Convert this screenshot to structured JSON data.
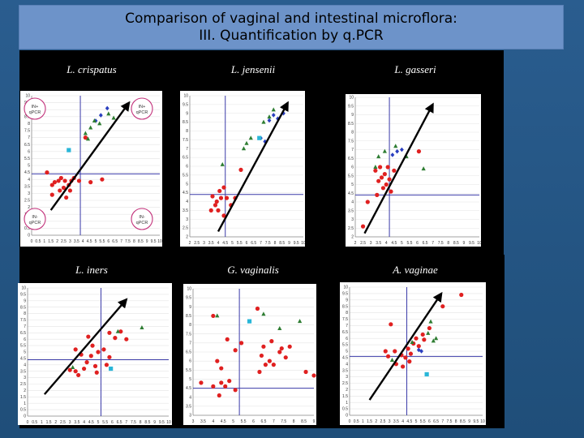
{
  "slide": {
    "title_line1": "Comparison of vaginal and intestinal microflora:",
    "title_line2": "III. Quantification by q.PCR"
  },
  "panels": [
    {
      "label": "L. crispatus",
      "quadrants": [
        {
          "pos": "tl",
          "l1": "IN+",
          "l2": "qPCR"
        },
        {
          "pos": "tr",
          "l1": "IN+",
          "l2": "qPCR"
        },
        {
          "pos": "bl",
          "l1": "IN-",
          "l2": "qPCR"
        },
        {
          "pos": "br",
          "l1": "IN-",
          "l2": "qPCR"
        }
      ]
    },
    {
      "label": "L. jensenii",
      "quadrants": []
    },
    {
      "label": "L. gasseri",
      "quadrants": []
    },
    {
      "label": "L. iners",
      "quadrants": []
    },
    {
      "label": "G. vaginalis",
      "quadrants": []
    },
    {
      "label": "A. vaginae",
      "quadrants": []
    }
  ],
  "chart_data": [
    {
      "type": "scatter",
      "title": "L. crispatus",
      "series": [
        {
          "marker": "circle",
          "color": "#e02020",
          "points": [
            [
              1.2,
              4.5
            ],
            [
              1.6,
              3.6
            ],
            [
              1.8,
              3.8
            ],
            [
              2.1,
              3.9
            ],
            [
              2.3,
              4.1
            ],
            [
              2.6,
              3.9
            ],
            [
              2.5,
              3.4
            ],
            [
              2.9,
              3.6
            ],
            [
              3.1,
              3.9
            ],
            [
              3.3,
              4.1
            ],
            [
              2.2,
              3.2
            ],
            [
              3.7,
              3.9
            ],
            [
              4.6,
              3.8
            ],
            [
              1.6,
              2.9
            ],
            [
              2.7,
              2.7
            ],
            [
              3.0,
              3.2
            ],
            [
              5.5,
              4.0
            ],
            [
              4.2,
              7.0
            ]
          ]
        },
        {
          "marker": "diamond",
          "color": "#2a3fbf",
          "points": [
            [
              5.0,
              8.2
            ],
            [
              5.4,
              8.6
            ],
            [
              5.9,
              9.1
            ]
          ]
        },
        {
          "marker": "triangle",
          "color": "#2e7d32",
          "points": [
            [
              4.2,
              7.3
            ],
            [
              4.6,
              7.7
            ],
            [
              4.9,
              8.2
            ],
            [
              5.3,
              8.0
            ],
            [
              6.0,
              8.7
            ],
            [
              6.4,
              8.4
            ],
            [
              4.4,
              6.9
            ]
          ]
        },
        {
          "marker": "square",
          "color": "#29b6d8",
          "points": [
            [
              2.9,
              6.1
            ]
          ]
        }
      ]
    },
    {
      "type": "scatter",
      "title": "L. jensenii",
      "series": [
        {
          "marker": "circle",
          "color": "#e02020",
          "points": [
            [
              3.6,
              4.3
            ],
            [
              3.9,
              4.0
            ],
            [
              4.1,
              4.6
            ],
            [
              4.4,
              4.8
            ],
            [
              4.2,
              4.2
            ],
            [
              3.8,
              3.8
            ],
            [
              4.6,
              4.2
            ],
            [
              4.0,
              3.5
            ],
            [
              5.2,
              4.2
            ],
            [
              4.9,
              3.8
            ],
            [
              3.5,
              3.5
            ],
            [
              5.6,
              5.8
            ],
            [
              4.4,
              3.2
            ]
          ]
        },
        {
          "marker": "diamond",
          "color": "#2a3fbf",
          "points": [
            [
              7.6,
              8.6
            ],
            [
              7.9,
              8.9
            ],
            [
              8.2,
              8.7
            ],
            [
              8.6,
              9.0
            ],
            [
              7.3,
              7.4
            ],
            [
              7.0,
              7.6
            ]
          ]
        },
        {
          "marker": "triangle",
          "color": "#2e7d32",
          "points": [
            [
              6.0,
              7.3
            ],
            [
              6.3,
              7.6
            ],
            [
              5.8,
              7.0
            ],
            [
              7.2,
              8.5
            ],
            [
              7.6,
              8.8
            ],
            [
              7.9,
              9.2
            ],
            [
              4.3,
              6.1
            ]
          ]
        },
        {
          "marker": "square",
          "color": "#29b6d8",
          "points": [
            [
              6.9,
              7.6
            ]
          ]
        }
      ]
    },
    {
      "type": "scatter",
      "title": "L. gasseri",
      "series": [
        {
          "marker": "circle",
          "color": "#e02020",
          "points": [
            [
              3.3,
              5.8
            ],
            [
              3.6,
              6.0
            ],
            [
              3.9,
              5.6
            ],
            [
              4.2,
              5.3
            ],
            [
              4.0,
              5.0
            ],
            [
              3.5,
              5.2
            ],
            [
              4.5,
              5.8
            ],
            [
              3.8,
              4.8
            ],
            [
              4.3,
              4.6
            ],
            [
              3.4,
              4.4
            ],
            [
              2.8,
              4.0
            ],
            [
              2.5,
              2.6
            ],
            [
              6.1,
              6.9
            ],
            [
              3.7,
              5.4
            ],
            [
              4.1,
              6.0
            ]
          ]
        },
        {
          "marker": "diamond",
          "color": "#2a3fbf",
          "points": [
            [
              4.4,
              6.7
            ],
            [
              4.7,
              6.9
            ],
            [
              5.0,
              7.0
            ]
          ]
        },
        {
          "marker": "triangle",
          "color": "#2e7d32",
          "points": [
            [
              3.5,
              6.6
            ],
            [
              3.9,
              6.9
            ],
            [
              4.6,
              7.2
            ],
            [
              5.3,
              6.6
            ],
            [
              6.4,
              5.9
            ],
            [
              3.3,
              6.0
            ]
          ]
        }
      ]
    },
    {
      "type": "scatter",
      "title": "L. iners",
      "series": [
        {
          "marker": "circle",
          "color": "#e02020",
          "points": [
            [
              3.4,
              5.2
            ],
            [
              3.8,
              4.8
            ],
            [
              4.2,
              4.2
            ],
            [
              4.0,
              3.7
            ],
            [
              3.4,
              3.5
            ],
            [
              3.6,
              3.2
            ],
            [
              4.5,
              4.7
            ],
            [
              5.0,
              5.0
            ],
            [
              5.4,
              5.2
            ],
            [
              5.8,
              4.6
            ],
            [
              6.2,
              6.1
            ],
            [
              6.6,
              6.6
            ],
            [
              7.0,
              6.0
            ],
            [
              5.8,
              6.5
            ],
            [
              4.6,
              5.5
            ],
            [
              4.3,
              6.2
            ],
            [
              3.0,
              3.6
            ],
            [
              4.8,
              3.9
            ],
            [
              4.9,
              3.4
            ],
            [
              5.6,
              4.0
            ]
          ]
        },
        {
          "marker": "triangle",
          "color": "#2e7d32",
          "points": [
            [
              6.4,
              6.6
            ],
            [
              8.1,
              6.9
            ],
            [
              3.2,
              3.8
            ]
          ]
        },
        {
          "marker": "square",
          "color": "#29b6d8",
          "points": [
            [
              5.9,
              3.7
            ]
          ]
        }
      ]
    },
    {
      "type": "scatter",
      "title": "G. vaginalis",
      "series": [
        {
          "marker": "circle",
          "color": "#e02020",
          "points": [
            [
              4.0,
              4.6
            ],
            [
              4.4,
              4.8
            ],
            [
              4.8,
              4.9
            ],
            [
              5.1,
              4.4
            ],
            [
              4.6,
              4.6
            ],
            [
              6.3,
              5.4
            ],
            [
              6.6,
              5.8
            ],
            [
              6.8,
              6.0
            ],
            [
              7.0,
              5.8
            ],
            [
              6.4,
              6.3
            ],
            [
              7.4,
              6.7
            ],
            [
              6.9,
              7.1
            ],
            [
              7.3,
              6.5
            ],
            [
              7.6,
              6.2
            ],
            [
              7.8,
              6.8
            ],
            [
              4.4,
              5.6
            ],
            [
              4.2,
              6.0
            ],
            [
              5.1,
              6.6
            ],
            [
              5.4,
              7.0
            ],
            [
              4.7,
              7.2
            ],
            [
              4.0,
              8.5
            ],
            [
              6.2,
              8.9
            ],
            [
              6.5,
              6.8
            ],
            [
              8.6,
              5.4
            ],
            [
              9.0,
              5.2
            ],
            [
              3.4,
              4.8
            ],
            [
              4.3,
              4.1
            ]
          ]
        },
        {
          "marker": "triangle",
          "color": "#2e7d32",
          "points": [
            [
              6.5,
              8.6
            ],
            [
              4.2,
              8.5
            ],
            [
              7.3,
              7.8
            ],
            [
              8.3,
              8.2
            ]
          ]
        },
        {
          "marker": "square",
          "color": "#29b6d8",
          "points": [
            [
              5.8,
              8.2
            ]
          ]
        }
      ]
    },
    {
      "type": "scatter",
      "title": "A. vaginae",
      "series": [
        {
          "marker": "circle",
          "color": "#e02020",
          "points": [
            [
              3.4,
              5.0
            ],
            [
              3.9,
              4.7
            ],
            [
              4.4,
              5.2
            ],
            [
              4.6,
              4.8
            ],
            [
              4.2,
              4.5
            ],
            [
              4.8,
              5.6
            ],
            [
              5.2,
              5.4
            ],
            [
              5.0,
              6.0
            ],
            [
              5.5,
              6.3
            ],
            [
              6.0,
              6.8
            ],
            [
              2.9,
              4.6
            ],
            [
              3.5,
              4.0
            ],
            [
              4.0,
              3.8
            ],
            [
              4.5,
              4.2
            ],
            [
              5.6,
              5.9
            ],
            [
              7.0,
              8.5
            ],
            [
              8.4,
              9.4
            ],
            [
              3.1,
              7.1
            ],
            [
              2.7,
              5.0
            ]
          ]
        },
        {
          "marker": "diamond",
          "color": "#2a3fbf",
          "points": [
            [
              5.2,
              5.1
            ],
            [
              5.4,
              5.0
            ]
          ]
        },
        {
          "marker": "triangle",
          "color": "#2e7d32",
          "points": [
            [
              4.7,
              5.7
            ],
            [
              5.9,
              6.4
            ],
            [
              6.1,
              7.3
            ],
            [
              6.3,
              5.8
            ],
            [
              6.5,
              6.0
            ],
            [
              3.2,
              4.3
            ]
          ]
        },
        {
          "marker": "square",
          "color": "#29b6d8",
          "points": [
            [
              5.8,
              3.2
            ]
          ]
        }
      ]
    }
  ]
}
